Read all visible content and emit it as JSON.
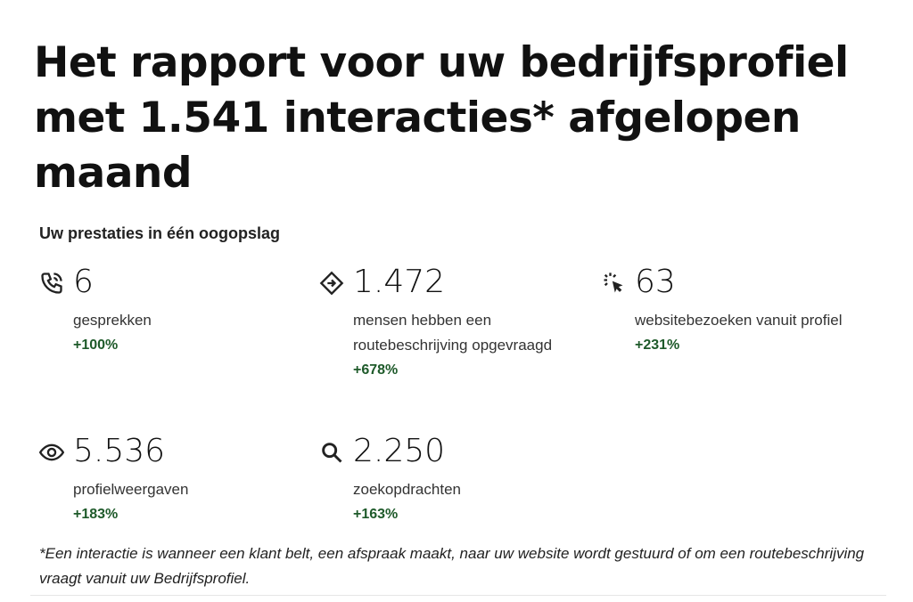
{
  "title": "Het rapport voor uw bedrijfsprofiel met 1.541 interacties* afgelopen maand",
  "subtitle": "Uw prestaties in één oogopslag",
  "stats": [
    {
      "icon": "phone-icon",
      "value": "6",
      "label": "gesprekken",
      "change": "+100%"
    },
    {
      "icon": "directions-icon",
      "value": "1.472",
      "label": "mensen hebben een routebeschrijving opgevraagd",
      "change": "+678%"
    },
    {
      "icon": "click-icon",
      "value": "63",
      "label": "websitebezoeken vanuit profiel",
      "change": "+231%"
    },
    {
      "icon": "eye-icon",
      "value": "5.536",
      "label": "profielweergaven",
      "change": "+183%"
    },
    {
      "icon": "search-icon",
      "value": "2.250",
      "label": "zoekopdrachten",
      "change": "+163%"
    }
  ],
  "footnote": "*Een interactie is wanneer een klant belt, een afspraak maakt, naar uw website wordt gestuurd of om een routebeschrijving vraagt vanuit uw Bedrijfsprofiel.",
  "colors": {
    "positive": "#1e5a2a"
  }
}
